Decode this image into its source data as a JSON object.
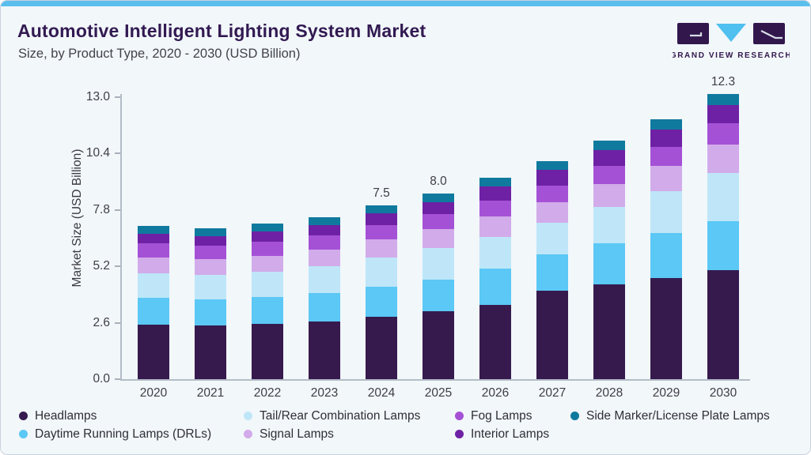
{
  "header": {
    "title": "Automotive Intelligent Lighting System Market",
    "subtitle": "Size, by Product Type, 2020 - 2030 (USD Billion)"
  },
  "logo": {
    "text": "GRAND VIEW RESEARCH"
  },
  "colors": {
    "accent_top_bar": "#5bbfee",
    "card_background": "#f2f7fa",
    "title_text": "#321a52",
    "subtitle_text": "#43434b",
    "axis_text": "#3e3e46",
    "logo_purple": "#32174d",
    "logo_cyan": "#4fc0ef"
  },
  "chart_data": {
    "type": "bar",
    "stacked": true,
    "title": "Automotive Intelligent Lighting System Market Size, by Product Type, 2020 - 2030 (USD Billion)",
    "xlabel": "",
    "ylabel": "Market Size (USD Billion)",
    "categories": [
      "2020",
      "2021",
      "2022",
      "2023",
      "2024",
      "2025",
      "2026",
      "2027",
      "2028",
      "2029",
      "2030"
    ],
    "y_tick_labels": [
      "0.0",
      "2.6",
      "5.2",
      "7.8",
      "10.4",
      "13.0"
    ],
    "ylim": [
      0,
      13
    ],
    "grid": false,
    "legend_position": "bottom",
    "series": [
      {
        "name": "Headlamps",
        "color": "#361a4e",
        "values": [
          2.34,
          2.3,
          2.38,
          2.5,
          2.7,
          2.93,
          3.2,
          3.8,
          4.08,
          4.36,
          4.7
        ]
      },
      {
        "name": "Daytime Running Lamps (DRLs)",
        "color": "#5bc8f5",
        "values": [
          1.16,
          1.14,
          1.17,
          1.21,
          1.3,
          1.38,
          1.57,
          1.58,
          1.79,
          1.94,
          2.13
        ]
      },
      {
        "name": "Tail/Rear Combination Lamps",
        "color": "#bee6f8",
        "values": [
          1.08,
          1.07,
          1.1,
          1.16,
          1.25,
          1.34,
          1.36,
          1.38,
          1.56,
          1.8,
          2.08
        ]
      },
      {
        "name": "Signal Lamps",
        "color": "#d2abea",
        "values": [
          0.66,
          0.66,
          0.68,
          0.71,
          0.77,
          0.82,
          0.88,
          0.89,
          0.99,
          1.09,
          1.21
        ]
      },
      {
        "name": "Fog Lamps",
        "color": "#a551d6",
        "values": [
          0.61,
          0.6,
          0.61,
          0.62,
          0.64,
          0.65,
          0.7,
          0.71,
          0.77,
          0.83,
          0.91
        ]
      },
      {
        "name": "Interior Lamps",
        "color": "#6e21a4",
        "values": [
          0.42,
          0.41,
          0.43,
          0.46,
          0.49,
          0.52,
          0.61,
          0.66,
          0.7,
          0.75,
          0.8
        ]
      },
      {
        "name": "Side Marker/License Plate Lamps",
        "color": "#0f7a9e",
        "values": [
          0.33,
          0.32,
          0.33,
          0.34,
          0.35,
          0.36,
          0.38,
          0.38,
          0.41,
          0.43,
          0.47
        ]
      }
    ],
    "totals": [
      6.6,
      6.5,
      6.7,
      7.0,
      7.5,
      8.0,
      8.7,
      9.4,
      10.3,
      11.2,
      12.3
    ],
    "total_labels": [
      {
        "category": "2024",
        "label": "7.5"
      },
      {
        "category": "2025",
        "label": "8.0"
      },
      {
        "category": "2030",
        "label": "12.3"
      }
    ],
    "legend_rows": [
      [
        "Headlamps",
        "Tail/Rear Combination Lamps",
        "Fog Lamps",
        "Side Marker/License Plate Lamps"
      ],
      [
        "Daytime Running Lamps (DRLs)",
        "Signal Lamps",
        "Interior Lamps"
      ]
    ]
  }
}
